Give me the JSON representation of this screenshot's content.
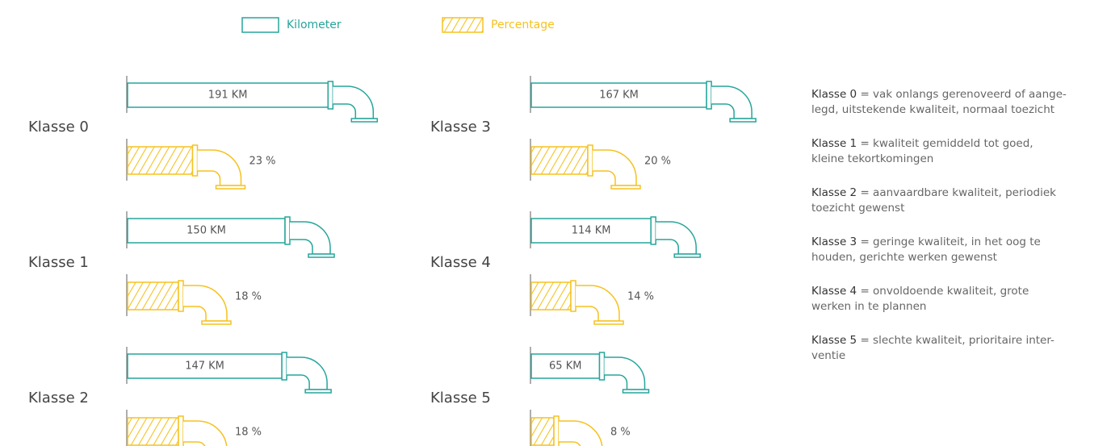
{
  "chart_data": {
    "type": "bar",
    "categories": [
      "Klasse 0",
      "Klasse 1",
      "Klasse 2",
      "Klasse 3",
      "Klasse 4",
      "Klasse 5"
    ],
    "series": [
      {
        "name": "Kilometer",
        "color": "#27a59b",
        "values": [
          191,
          150,
          147,
          167,
          114,
          65
        ],
        "value_labels": [
          "191 KM",
          "150 KM",
          "147 KM",
          "167 KM",
          "114 KM",
          "65 KM"
        ]
      },
      {
        "name": "Percentage",
        "color": "#f5c220",
        "values": [
          23,
          18,
          18,
          20,
          14,
          8
        ],
        "value_labels": [
          "23 %",
          "18 %",
          "18 %",
          "20 %",
          "14 %",
          "8 %"
        ]
      }
    ]
  },
  "descriptions": [
    {
      "label": "Klasse 0",
      "lines": [
        "= vak onlangs gerenoveerd of aange-",
        "legd, uitstekende kwaliteit, normaal toezicht"
      ]
    },
    {
      "label": "Klasse 1",
      "lines": [
        "= kwaliteit gemiddeld tot goed,",
        "kleine tekortkomingen"
      ]
    },
    {
      "label": "Klasse 2",
      "lines": [
        "= aanvaardbare kwaliteit, periodiek",
        "toezicht gewenst"
      ]
    },
    {
      "label": "Klasse 3",
      "lines": [
        "= geringe kwaliteit, in het oog te",
        "houden, gerichte werken gewenst"
      ]
    },
    {
      "label": "Klasse 4",
      "lines": [
        "= onvoldoende kwaliteit, grote",
        "werken in te plannen"
      ]
    },
    {
      "label": "Klasse 5",
      "lines": [
        "= slechte kwaliteit, prioritaire inter-",
        "ventie"
      ]
    }
  ]
}
